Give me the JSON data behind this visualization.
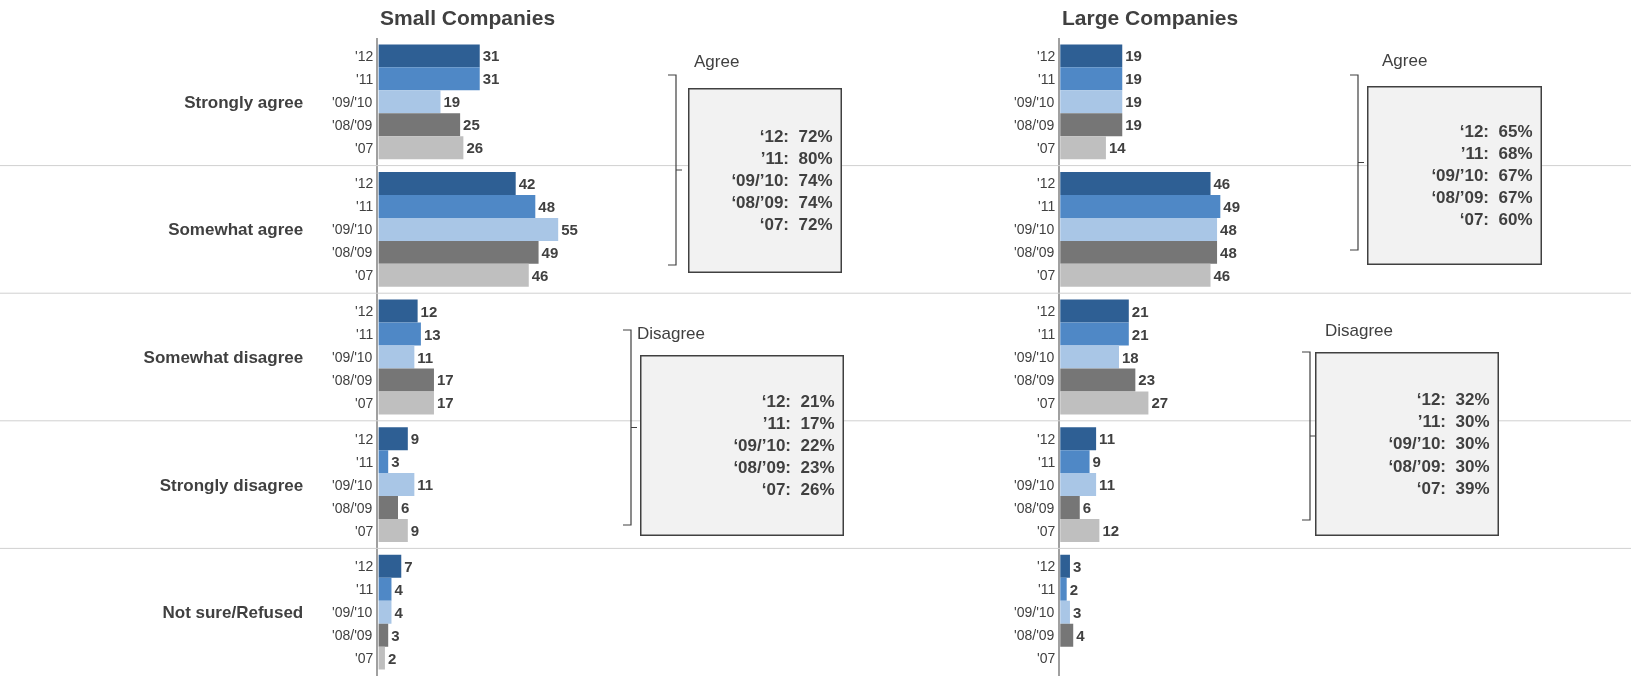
{
  "chart_data": [
    {
      "type": "bar",
      "orientation": "horizontal",
      "title": "Small Companies",
      "categories": [
        "Strongly agree",
        "Somewhat agree",
        "Somewhat disagree",
        "Strongly disagree",
        "Not sure/Refused"
      ],
      "series": [
        {
          "name": "'12",
          "color": "#2e5f94",
          "values": [
            31,
            42,
            12,
            9,
            7
          ]
        },
        {
          "name": "'11",
          "color": "#4f88c6",
          "values": [
            31,
            48,
            13,
            3,
            4
          ]
        },
        {
          "name": "'09/'10",
          "color": "#a9c6e6",
          "values": [
            19,
            55,
            11,
            11,
            4
          ]
        },
        {
          "name": "'08/'09",
          "color": "#767676",
          "values": [
            25,
            49,
            17,
            6,
            3
          ]
        },
        {
          "name": "'07",
          "color": "#bfbfbf",
          "values": [
            26,
            46,
            17,
            9,
            2
          ]
        }
      ],
      "data_labels": true,
      "grid": "y",
      "legend": false,
      "tick_labels": "y",
      "annotations": [
        "Agree",
        "‘12:  72%\n’11:  80%\n‘09/’10:  74%\n‘08/’09:  74%\n‘07:  72%",
        "Disagree",
        "‘12:  21%\n’11:  17%\n‘09/’10:  22%\n‘08/’09:  23%\n‘07:  26%"
      ]
    },
    {
      "type": "bar",
      "orientation": "horizontal",
      "title": "Large Companies",
      "categories": [
        null,
        null,
        null,
        null,
        null
      ],
      "series": [
        {
          "name": "'12",
          "color": "#2e5f94",
          "values": [
            19,
            46,
            21,
            11,
            3
          ]
        },
        {
          "name": "'11",
          "color": "#4f88c6",
          "values": [
            19,
            49,
            21,
            9,
            2
          ]
        },
        {
          "name": "'09/'10",
          "color": "#a9c6e6",
          "values": [
            19,
            48,
            18,
            11,
            3
          ]
        },
        {
          "name": "'08/'09",
          "color": "#767676",
          "values": [
            19,
            48,
            23,
            6,
            4
          ]
        },
        {
          "name": "'07",
          "color": "#bfbfbf",
          "values": [
            14,
            46,
            27,
            12,
            null
          ]
        }
      ],
      "data_labels": true,
      "grid": "y",
      "legend": false,
      "tick_labels": false,
      "annotations": [
        "Agree",
        "‘12:  65%\n’11:  68%\n‘09/’10:  67%\n‘08/’09:  67%\n‘07:  60%",
        "Disagree",
        "‘12:  32%\n’11:  30%\n‘09/’10:  30%\n‘08/’09:  30%\n‘07:  39%"
      ]
    }
  ]
}
